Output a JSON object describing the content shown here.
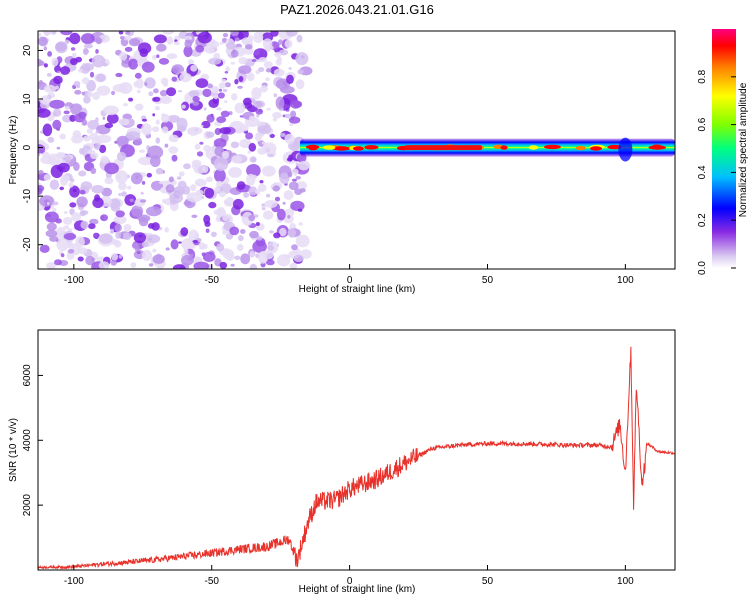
{
  "chart_data": [
    {
      "type": "heatmap",
      "title": "PAZ1.2026.043.21.01.G16",
      "xlabel": "Height of straight line (km)",
      "ylabel": "Frequency (Hz)",
      "xlim": [
        -113,
        118
      ],
      "ylim": [
        -25,
        24
      ],
      "xticks": [
        -100,
        -50,
        0,
        50,
        100
      ],
      "yticks": [
        -20,
        -10,
        0,
        10,
        20
      ],
      "noise_region_x": [
        -113,
        -18
      ],
      "signal_band": {
        "x_start": -18,
        "x_end": 118,
        "center_hz": 0
      },
      "colorbar": {
        "label": "Normalized spectral amplitude",
        "ticks": [
          0.0,
          0.2,
          0.4,
          0.6,
          0.8
        ],
        "range": [
          0,
          1
        ],
        "colors": [
          "#ffffff",
          "#d8c8f0",
          "#8a2be2",
          "#0000ff",
          "#00bfff",
          "#00ff80",
          "#80ff00",
          "#ffff00",
          "#ff8000",
          "#ff0000",
          "#ff0080"
        ]
      }
    },
    {
      "type": "line",
      "xlabel": "Height of straight line (km)",
      "ylabel": "SNR (10 * v/v)",
      "xlim": [
        -113,
        118
      ],
      "ylim": [
        0,
        7400
      ],
      "xticks": [
        -100,
        -50,
        0,
        50,
        100
      ],
      "yticks": [
        2000,
        4000,
        6000
      ],
      "color": "#e8312a",
      "series_envelope": [
        [
          -113,
          80
        ],
        [
          -100,
          100
        ],
        [
          -90,
          180
        ],
        [
          -80,
          240
        ],
        [
          -70,
          320
        ],
        [
          -60,
          420
        ],
        [
          -50,
          520
        ],
        [
          -40,
          640
        ],
        [
          -30,
          720
        ],
        [
          -22,
          950
        ],
        [
          -19,
          300
        ],
        [
          -15,
          1500
        ],
        [
          -12,
          2100
        ],
        [
          -5,
          2150
        ],
        [
          0,
          2500
        ],
        [
          10,
          2800
        ],
        [
          20,
          3300
        ],
        [
          30,
          3750
        ],
        [
          40,
          3850
        ],
        [
          50,
          3900
        ],
        [
          60,
          3900
        ],
        [
          70,
          3880
        ],
        [
          80,
          3850
        ],
        [
          90,
          3850
        ],
        [
          95,
          3800
        ],
        [
          98,
          4500
        ],
        [
          100,
          3000
        ],
        [
          102,
          6800
        ],
        [
          103,
          2000
        ],
        [
          104,
          5800
        ],
        [
          106,
          2600
        ],
        [
          108,
          3900
        ],
        [
          112,
          3650
        ],
        [
          118,
          3600
        ]
      ]
    }
  ]
}
